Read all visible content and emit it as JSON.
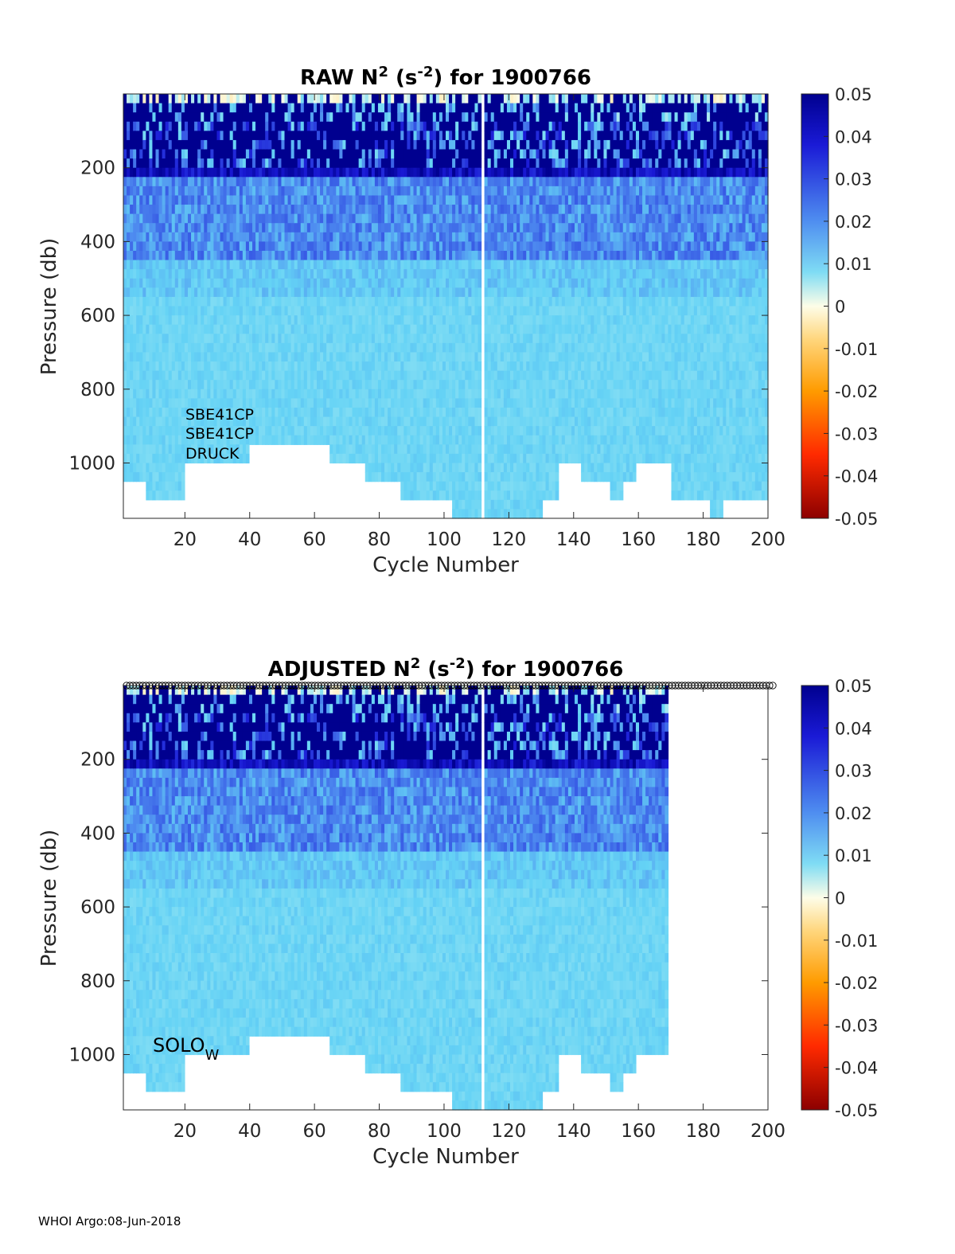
{
  "chart_data": [
    {
      "type": "heatmap",
      "title": {
        "pre": "RAW N",
        "sup1": "2",
        "mid": " (s",
        "sup2": "-2",
        "post": ") for 1900766"
      },
      "xlabel": "Cycle Number",
      "ylabel": "Pressure (db)",
      "xlim": [
        1,
        200
      ],
      "ylim": [
        1150,
        0
      ],
      "x_ticks": [
        20,
        40,
        60,
        80,
        100,
        120,
        140,
        160,
        180,
        200
      ],
      "y_ticks": [
        200,
        400,
        600,
        800,
        1000
      ],
      "last_cycle": 200,
      "gap_cycle": 112,
      "annotations": [
        "SBE41CP",
        "SBE41CP",
        "DRUCK"
      ],
      "colorbar": {
        "min": -0.05,
        "max": 0.05,
        "ticks": [
          "0.05",
          "0.04",
          "0.03",
          "0.02",
          "0.01",
          "0",
          "-0.01",
          "-0.02",
          "-0.03",
          "-0.04",
          "-0.05"
        ]
      },
      "layers": [
        {
          "p_top": 0,
          "p_bottom": 200,
          "approx_value": 0.05,
          "note": "dark blue near-surface layer with pale/near-zero cells at top"
        },
        {
          "p_top": 200,
          "p_bottom": 450,
          "approx_value": 0.022
        },
        {
          "p_top": 450,
          "p_bottom": 1000,
          "approx_value": 0.01
        }
      ],
      "profile_depth_segments": [
        [
          1,
          7,
          1050
        ],
        [
          7,
          19,
          1100
        ],
        [
          20,
          39,
          1000
        ],
        [
          40,
          64,
          950
        ],
        [
          65,
          75,
          1000
        ],
        [
          76,
          86,
          1050
        ],
        [
          87,
          102,
          1100
        ],
        [
          103,
          110,
          1150
        ],
        [
          111,
          130,
          1150
        ],
        [
          131,
          135,
          1100
        ],
        [
          136,
          142,
          1000
        ],
        [
          143,
          151,
          1050
        ],
        [
          152,
          155,
          1100
        ],
        [
          156,
          159,
          1050
        ],
        [
          160,
          170,
          1000
        ],
        [
          171,
          182,
          1100
        ],
        [
          183,
          186,
          1150
        ],
        [
          187,
          200,
          1100
        ]
      ]
    },
    {
      "type": "heatmap",
      "title": {
        "pre": "ADJUSTED N",
        "sup1": "2",
        "mid": " (s",
        "sup2": "-2",
        "post": ") for 1900766"
      },
      "xlabel": "Cycle Number",
      "ylabel": "Pressure (db)",
      "xlim": [
        1,
        200
      ],
      "ylim": [
        1150,
        0
      ],
      "x_ticks": [
        20,
        40,
        60,
        80,
        100,
        120,
        140,
        160,
        180,
        200
      ],
      "y_ticks": [
        200,
        400,
        600,
        800,
        1000
      ],
      "last_cycle": 169,
      "gap_cycle": 112,
      "annotation_main": "SOLO",
      "annotation_sub": "W",
      "qc_markers_cycles": [
        1,
        200
      ],
      "colorbar": {
        "min": -0.05,
        "max": 0.05,
        "ticks": [
          "0.05",
          "0.04",
          "0.03",
          "0.02",
          "0.01",
          "0",
          "-0.01",
          "-0.02",
          "-0.03",
          "-0.04",
          "-0.05"
        ]
      },
      "layers": [
        {
          "p_top": 0,
          "p_bottom": 200,
          "approx_value": 0.05
        },
        {
          "p_top": 200,
          "p_bottom": 450,
          "approx_value": 0.022
        },
        {
          "p_top": 450,
          "p_bottom": 1000,
          "approx_value": 0.01
        }
      ],
      "profile_depth_segments": [
        [
          1,
          7,
          1050
        ],
        [
          7,
          19,
          1100
        ],
        [
          20,
          39,
          1000
        ],
        [
          40,
          64,
          950
        ],
        [
          65,
          75,
          1000
        ],
        [
          76,
          86,
          1050
        ],
        [
          87,
          102,
          1100
        ],
        [
          103,
          110,
          1150
        ],
        [
          111,
          130,
          1150
        ],
        [
          131,
          135,
          1100
        ],
        [
          136,
          142,
          1000
        ],
        [
          143,
          151,
          1050
        ],
        [
          152,
          155,
          1100
        ],
        [
          156,
          159,
          1050
        ],
        [
          160,
          169,
          1000
        ]
      ]
    }
  ],
  "footer": "WHOI Argo:08-Jun-2018"
}
